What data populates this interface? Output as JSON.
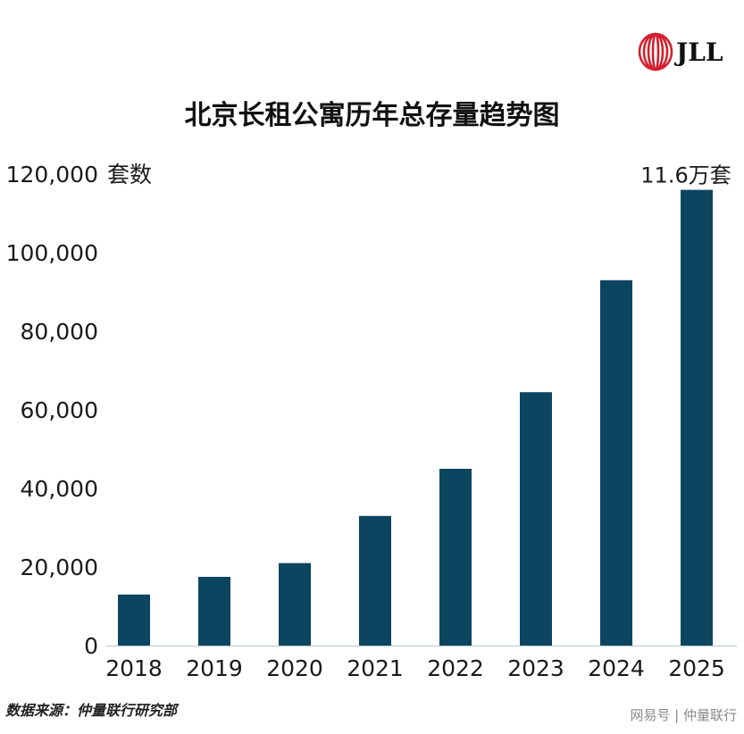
{
  "chart_data": {
    "type": "bar",
    "title": "北京长租公寓历年总存量趋势图",
    "ylabel": "套数",
    "xlabel": "",
    "categories": [
      "2018",
      "2019",
      "2020",
      "2021",
      "2022",
      "2023",
      "2024",
      "2025"
    ],
    "values": [
      13000,
      17500,
      21000,
      33000,
      45000,
      64500,
      93000,
      116000
    ],
    "ylim": [
      0,
      120000
    ],
    "yticks": [
      0,
      20000,
      40000,
      60000,
      80000,
      100000,
      120000
    ],
    "ytick_labels": [
      "0",
      "20,000",
      "40,000",
      "60,000",
      "80,000",
      "100,000",
      "120,000"
    ],
    "annotations": [
      {
        "category": "2025",
        "text": "11.6万套"
      }
    ],
    "grid": false,
    "legend": "none",
    "bar_color": "#0c4560"
  },
  "logo": {
    "text": "JLL",
    "color": "#d3202e"
  },
  "source": "数据来源：仲量联行研究部",
  "watermark": "网易号 | 仲量联行"
}
